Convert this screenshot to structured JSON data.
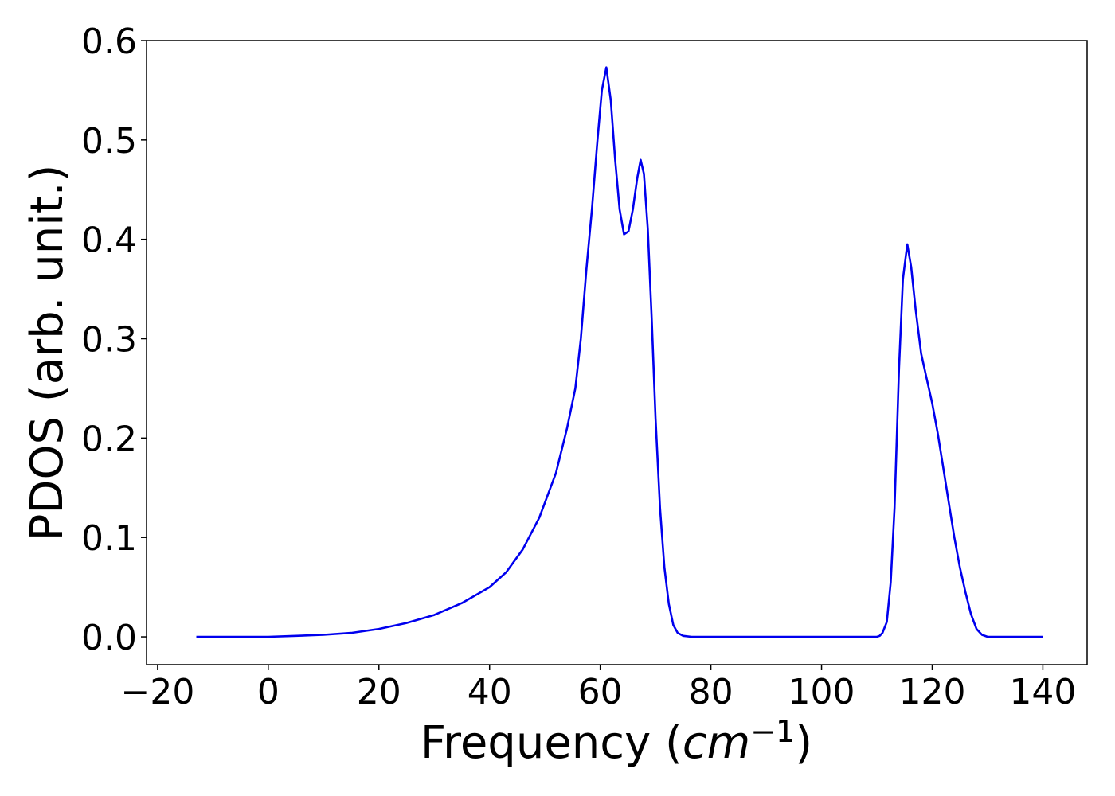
{
  "chart_data": {
    "type": "line",
    "xlabel": "Frequency (cm^-1)",
    "xlabel_parts": {
      "prefix": "Frequency (",
      "unit_base": "cm",
      "unit_exp": "−1",
      "suffix": ")"
    },
    "ylabel": "PDOS (arb. unit.)",
    "xlim": [
      -22,
      148
    ],
    "ylim": [
      -0.028,
      0.6
    ],
    "xticks": [
      -20,
      0,
      20,
      40,
      60,
      80,
      100,
      120,
      140
    ],
    "xtick_labels": [
      "−20",
      "0",
      "20",
      "40",
      "60",
      "80",
      "100",
      "120",
      "140"
    ],
    "yticks": [
      0.0,
      0.1,
      0.2,
      0.3,
      0.4,
      0.5,
      0.6
    ],
    "ytick_labels": [
      "0.0",
      "0.1",
      "0.2",
      "0.3",
      "0.4",
      "0.5",
      "0.6"
    ],
    "grid": false,
    "legend": "none",
    "series": [
      {
        "color": "#0000ee",
        "x": [
          -13,
          -5,
          0,
          5,
          10,
          15,
          20,
          25,
          30,
          35,
          40,
          43,
          46,
          49,
          52,
          54,
          55.5,
          56.5,
          57.5,
          58.5,
          59.5,
          60.3,
          61.1,
          61.9,
          62.7,
          63.5,
          64.3,
          65.1,
          65.9,
          66.7,
          67.3,
          67.9,
          68.6,
          69.3,
          70.0,
          70.8,
          71.6,
          72.4,
          73.2,
          74.0,
          75.0,
          76.5,
          80,
          90,
          100,
          110,
          110.5,
          111,
          111.8,
          112.5,
          113.2,
          114,
          114.7,
          115.5,
          116.2,
          117,
          118,
          119,
          120,
          121,
          122,
          123,
          124,
          125,
          126,
          127,
          128,
          129,
          130,
          131,
          135,
          140
        ],
        "y": [
          0.0,
          0.0,
          0.0,
          0.001,
          0.002,
          0.004,
          0.008,
          0.014,
          0.022,
          0.034,
          0.05,
          0.065,
          0.088,
          0.12,
          0.165,
          0.21,
          0.25,
          0.3,
          0.37,
          0.43,
          0.5,
          0.55,
          0.573,
          0.54,
          0.48,
          0.43,
          0.405,
          0.408,
          0.43,
          0.462,
          0.48,
          0.466,
          0.41,
          0.32,
          0.22,
          0.13,
          0.07,
          0.033,
          0.012,
          0.004,
          0.001,
          0.0,
          0.0,
          0.0,
          0.0,
          0.0,
          0.001,
          0.004,
          0.015,
          0.055,
          0.13,
          0.27,
          0.36,
          0.395,
          0.372,
          0.33,
          0.285,
          0.26,
          0.235,
          0.205,
          0.17,
          0.135,
          0.1,
          0.07,
          0.045,
          0.023,
          0.008,
          0.002,
          0.0,
          0.0,
          0.0,
          0.0
        ]
      }
    ]
  }
}
